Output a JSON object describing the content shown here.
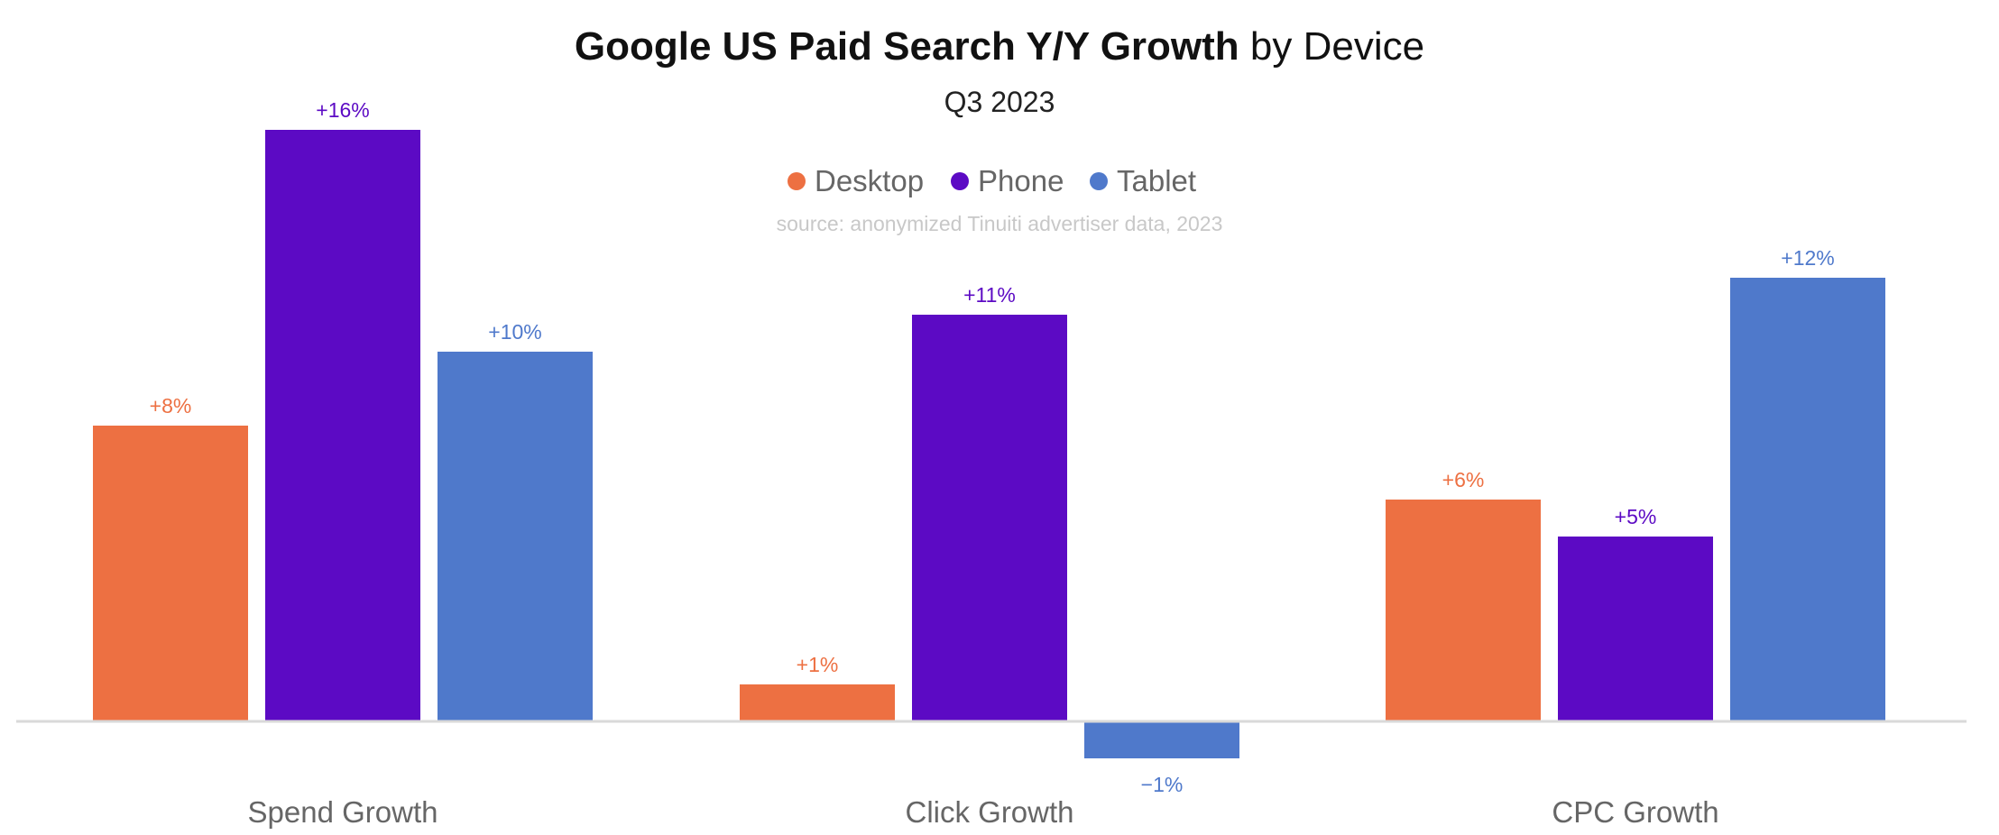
{
  "chart_data": {
    "type": "bar",
    "title_bold": "Google US Paid Search Y/Y Growth",
    "title_rest": " by Device",
    "subtitle": "Q3 2023",
    "source": "source: anonymized Tinuiti advertiser data, 2023",
    "categories": [
      "Spend Growth",
      "Click Growth",
      "CPC Growth"
    ],
    "series": [
      {
        "name": "Desktop",
        "color": "#ed7042",
        "values": [
          8,
          1,
          6
        ],
        "labels": [
          "+8%",
          "+1%",
          "+6%"
        ]
      },
      {
        "name": "Phone",
        "color": "#5c0ac4",
        "values": [
          16,
          11,
          5
        ],
        "labels": [
          "+16%",
          "+11%",
          "+5%"
        ]
      },
      {
        "name": "Tablet",
        "color": "#4f79cb",
        "values": [
          10,
          -1,
          12
        ],
        "labels": [
          "+10%",
          "−1%",
          "+12%"
        ]
      }
    ],
    "ylim": [
      -1,
      16
    ],
    "grid": false,
    "legend": "top-center",
    "axis_color": "#d9d9d9"
  }
}
